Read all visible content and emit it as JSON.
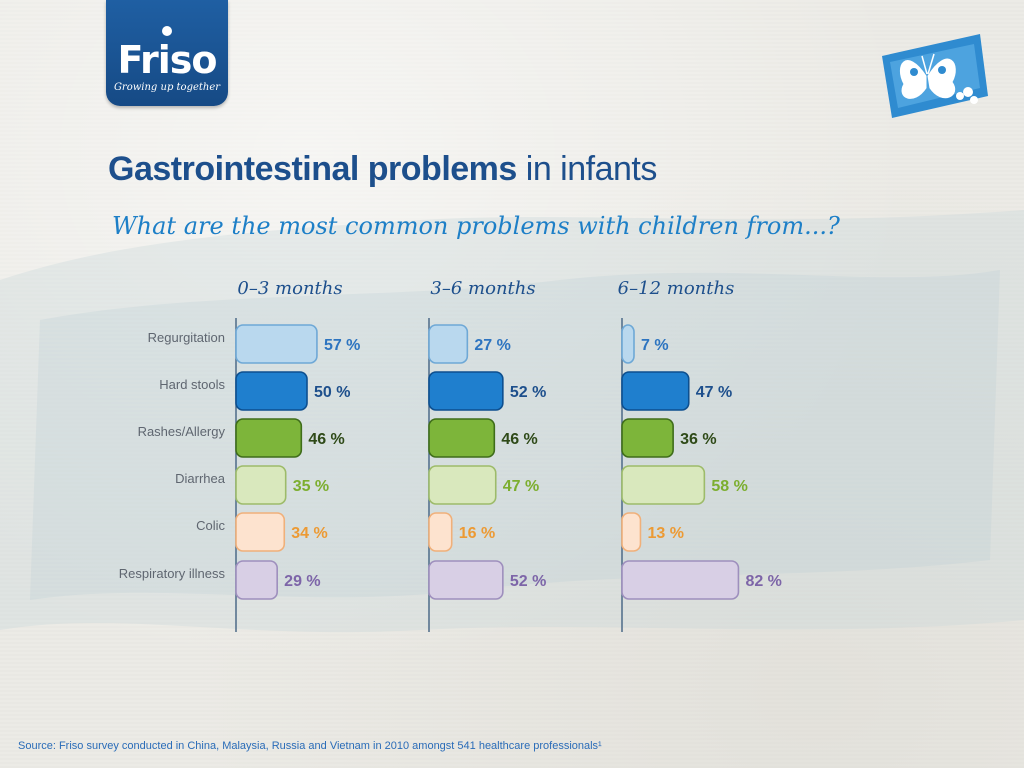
{
  "brand": {
    "name": "Friso",
    "tagline": "Growing up together"
  },
  "title": {
    "bold": "Gastrointestinal problems",
    "light": " in infants"
  },
  "subtitle": "What are the most common problems with children from...?",
  "source": "Source: Friso survey conducted in China, Malaysia, Russia and Vietnam in 2010 amongst 541 healthcare professionals¹",
  "colors": {
    "brand_blue": "#1f5fa3",
    "title_blue": "#1d4f8c",
    "subtitle_blue": "#1d7fc7"
  },
  "chart_data": {
    "type": "bar",
    "orientation": "horizontal",
    "categories": [
      "Regurgitation",
      "Hard stools",
      "Rashes/Allergy",
      "Diarrhea",
      "Colic",
      "Respiratory illness"
    ],
    "category_colors": [
      {
        "fill": "#b9d8ee",
        "stroke": "#6ea8d6",
        "text": "#2d74c0"
      },
      {
        "fill": "#1f7fce",
        "stroke": "#0d4f8f",
        "text": "#1d4f8c"
      },
      {
        "fill": "#7db53a",
        "stroke": "#3f6d1a",
        "text": "#2f4a18"
      },
      {
        "fill": "#d9e8bd",
        "stroke": "#9dbb6a",
        "text": "#7cae2f"
      },
      {
        "fill": "#fde3cf",
        "stroke": "#f0b07a",
        "text": "#ec9a34"
      },
      {
        "fill": "#d8cfe5",
        "stroke": "#9e8fbd",
        "text": "#7d65a8"
      }
    ],
    "unit": "%",
    "series": [
      {
        "name": "0–3 months",
        "values": [
          57,
          50,
          46,
          35,
          34,
          29
        ],
        "labels": [
          "57 %",
          "50 %",
          "46 %",
          "35 %",
          "34 %",
          "29 %"
        ]
      },
      {
        "name": "3–6 months",
        "values": [
          27,
          52,
          46,
          47,
          16,
          52
        ],
        "labels": [
          "27 %",
          "52 %",
          "46 %",
          "47 %",
          "16 %",
          "52 %"
        ]
      },
      {
        "name": "6–12 months",
        "values": [
          7,
          47,
          36,
          58,
          13,
          82
        ],
        "labels": [
          "7 %",
          "47 %",
          "36 %",
          "58 %",
          "13 %",
          "82 %"
        ]
      }
    ]
  }
}
